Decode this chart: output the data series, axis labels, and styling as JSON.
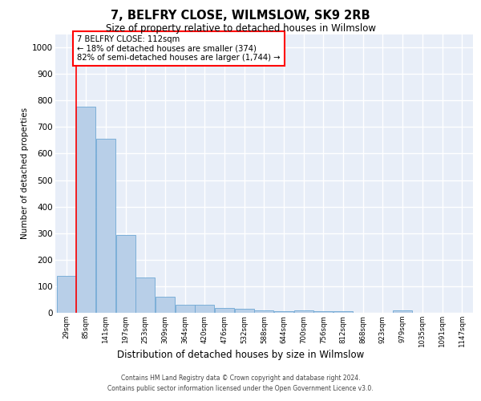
{
  "title": "7, BELFRY CLOSE, WILMSLOW, SK9 2RB",
  "subtitle": "Size of property relative to detached houses in Wilmslow",
  "xlabel": "Distribution of detached houses by size in Wilmslow",
  "ylabel": "Number of detached properties",
  "bar_labels": [
    "29sqm",
    "85sqm",
    "141sqm",
    "197sqm",
    "253sqm",
    "309sqm",
    "364sqm",
    "420sqm",
    "476sqm",
    "532sqm",
    "588sqm",
    "644sqm",
    "700sqm",
    "756sqm",
    "812sqm",
    "868sqm",
    "923sqm",
    "979sqm",
    "1035sqm",
    "1091sqm",
    "1147sqm"
  ],
  "bar_values": [
    140,
    778,
    657,
    294,
    133,
    60,
    30,
    29,
    18,
    15,
    8,
    5,
    8,
    5,
    5,
    0,
    0,
    10,
    0,
    0,
    0
  ],
  "bar_color": "#b8cfe8",
  "bar_edge_color": "#6fa8d4",
  "annotation_text": "7 BELFRY CLOSE: 112sqm\n← 18% of detached houses are smaller (374)\n82% of semi-detached houses are larger (1,744) →",
  "ylim": [
    0,
    1050
  ],
  "yticks": [
    0,
    100,
    200,
    300,
    400,
    500,
    600,
    700,
    800,
    900,
    1000
  ],
  "background_color": "#e8eef8",
  "grid_color": "white",
  "footer_line1": "Contains HM Land Registry data © Crown copyright and database right 2024.",
  "footer_line2": "Contains public sector information licensed under the Open Government Licence v3.0."
}
